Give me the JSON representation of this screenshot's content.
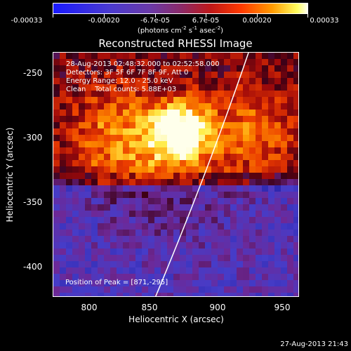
{
  "colorbar": {
    "tick_labels": [
      "-0.00033",
      "-0.00020",
      "-6.7e-05",
      "6.7e-05",
      "0.00020",
      "0.00033"
    ],
    "units_prefix": "(photons cm",
    "units_exp1": "-2",
    "units_mid1": " s",
    "units_exp2": "-1",
    "units_mid2": " asec",
    "units_exp3": "-2",
    "units_suffix": ")",
    "colors": [
      "#1a1aff",
      "#6a3aa8",
      "#c01818",
      "#ff3a00",
      "#ff9a00",
      "#ffff60",
      "#fffff0"
    ]
  },
  "plot": {
    "title": "Reconstructed RHESSI Image",
    "info_lines": [
      "28-Aug-2013 02:48:32.000 to 02:52:58.000",
      "Detectors: 3F 5F 6F 7F 8F 9F, Att 0",
      "Energy Range: 12.0 - 25.0 keV",
      "Clean    Total counts: 5.88E+03"
    ],
    "peak_text": "Position of Peak = [871,-295]",
    "x_axis_label": "Heliocentric X (arcsec)",
    "y_axis_label": "Heliocentric Y (arcsec)",
    "x_ticks": [
      "800",
      "850",
      "900",
      "950"
    ],
    "y_ticks": [
      "-250",
      "-300",
      "-350",
      "-400"
    ]
  },
  "timestamp": "27-Aug-2013 21:43"
}
